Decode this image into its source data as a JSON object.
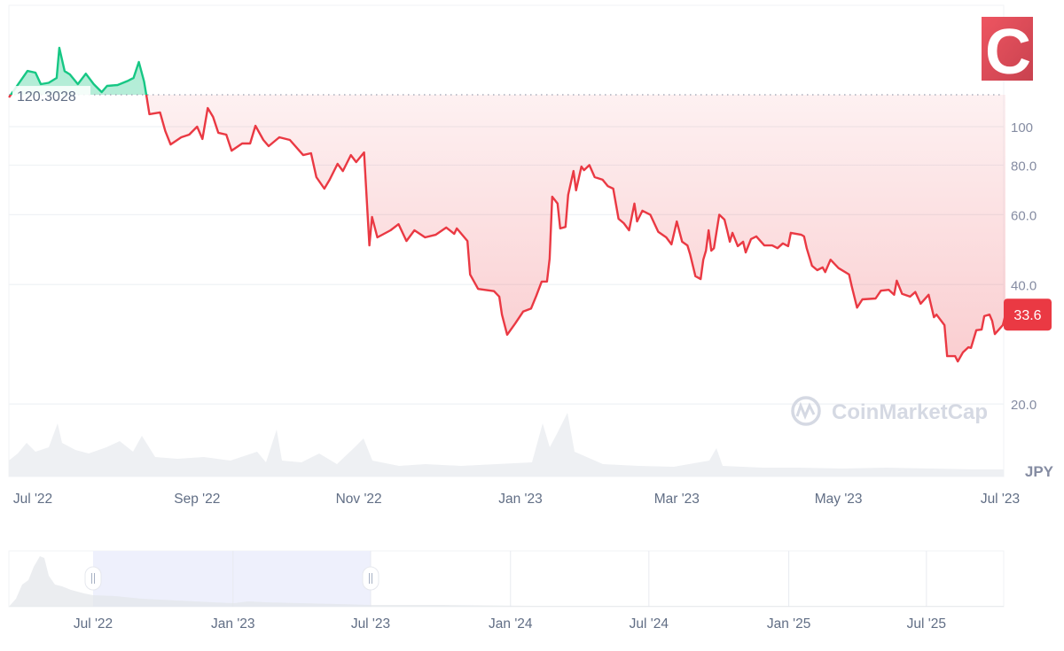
{
  "logo": {
    "letter": "C",
    "color": "#e8505b"
  },
  "watermark": {
    "text": "CoinMarketCap"
  },
  "currency_label": "JPY",
  "colors": {
    "up": "#16c784",
    "down": "#ea3943",
    "grid": "#eff2f5",
    "nav_selection": "#eef0fc"
  },
  "chart_data": {
    "type": "line",
    "y_scale": "log",
    "ylim": [
      17,
      175
    ],
    "xlim": [
      "2022-06-22",
      "2023-07-03"
    ],
    "grid": true,
    "baseline": {
      "value": 120.3028,
      "label": "120.3028"
    },
    "current_price": {
      "value": 33.6,
      "label": "33.6"
    },
    "y_ticks": [
      {
        "value": 100,
        "label": "100"
      },
      {
        "value": 80,
        "label": "80.0"
      },
      {
        "value": 60,
        "label": "60.0"
      },
      {
        "value": 40,
        "label": "40.0"
      },
      {
        "value": 20,
        "label": "20.0"
      }
    ],
    "x_ticks": [
      {
        "date": "2022-07-01",
        "label": "Jul '22"
      },
      {
        "date": "2022-09-01",
        "label": "Sep '22"
      },
      {
        "date": "2022-11-01",
        "label": "Nov '22"
      },
      {
        "date": "2023-01-01",
        "label": "Jan '23"
      },
      {
        "date": "2023-03-01",
        "label": "Mar '23"
      },
      {
        "date": "2023-05-01",
        "label": "May '23"
      },
      {
        "date": "2023-07-01",
        "label": "Jul '23"
      }
    ],
    "points": [
      [
        "2022-06-22",
        118.5
      ],
      [
        "2022-06-29",
        138.2
      ],
      [
        "2022-07-02",
        136.8
      ],
      [
        "2022-07-04",
        128
      ],
      [
        "2022-07-07",
        129
      ],
      [
        "2022-07-10",
        132.7
      ],
      [
        "2022-07-11",
        158
      ],
      [
        "2022-07-13",
        138
      ],
      [
        "2022-07-15",
        135.4
      ],
      [
        "2022-07-18",
        128
      ],
      [
        "2022-07-21",
        136
      ],
      [
        "2022-07-24",
        128
      ],
      [
        "2022-07-27",
        122.2
      ],
      [
        "2022-07-29",
        126.7
      ],
      [
        "2022-08-02",
        127.3
      ],
      [
        "2022-08-06",
        130.6
      ],
      [
        "2022-08-08",
        132.7
      ],
      [
        "2022-08-10",
        145.5
      ],
      [
        "2022-08-12",
        129.9
      ],
      [
        "2022-08-13",
        118.5
      ],
      [
        "2022-08-14",
        107.5
      ],
      [
        "2022-08-18",
        108.6
      ],
      [
        "2022-08-20",
        97.5
      ],
      [
        "2022-08-22",
        90.2
      ],
      [
        "2022-08-26",
        94
      ],
      [
        "2022-08-29",
        95.5
      ],
      [
        "2022-09-01",
        100
      ],
      [
        "2022-09-03",
        93.1
      ],
      [
        "2022-09-05",
        111.4
      ],
      [
        "2022-09-07",
        105.8
      ],
      [
        "2022-09-09",
        96.5
      ],
      [
        "2022-09-12",
        95.5
      ],
      [
        "2022-09-14",
        87.0
      ],
      [
        "2022-09-18",
        90.7
      ],
      [
        "2022-09-21",
        90.7
      ],
      [
        "2022-09-23",
        100.5
      ],
      [
        "2022-09-26",
        92.6
      ],
      [
        "2022-09-28",
        89.3
      ],
      [
        "2022-10-02",
        94
      ],
      [
        "2022-10-06",
        92.6
      ],
      [
        "2022-10-11",
        84.8
      ],
      [
        "2022-10-14",
        85.7
      ],
      [
        "2022-10-16",
        74.6
      ],
      [
        "2022-10-19",
        69.8
      ],
      [
        "2022-10-21",
        73.5
      ],
      [
        "2022-10-24",
        80.6
      ],
      [
        "2022-10-26",
        77.3
      ],
      [
        "2022-10-29",
        84.8
      ],
      [
        "2022-10-31",
        81.4
      ],
      [
        "2022-11-03",
        86.1
      ],
      [
        "2022-11-05",
        50.2
      ],
      [
        "2022-11-06",
        59.2
      ],
      [
        "2022-11-08",
        52.6
      ],
      [
        "2022-11-13",
        54.8
      ],
      [
        "2022-11-16",
        56.8
      ],
      [
        "2022-11-19",
        51.5
      ],
      [
        "2022-11-22",
        54.8
      ],
      [
        "2022-11-26",
        52.6
      ],
      [
        "2022-11-30",
        53.4
      ],
      [
        "2022-12-04",
        55.7
      ],
      [
        "2022-12-07",
        53.7
      ],
      [
        "2022-12-08",
        55.4
      ],
      [
        "2022-12-12",
        51.5
      ],
      [
        "2022-12-13",
        42.4
      ],
      [
        "2022-12-16",
        39.0
      ],
      [
        "2022-12-22",
        38.5
      ],
      [
        "2022-12-24",
        37.3
      ],
      [
        "2022-12-25",
        33.6
      ],
      [
        "2022-12-27",
        29.9
      ],
      [
        "2022-12-30",
        31.9
      ],
      [
        "2023-01-02",
        34.2
      ],
      [
        "2023-01-05",
        34.8
      ],
      [
        "2023-01-07",
        37.5
      ],
      [
        "2023-01-09",
        40.7
      ],
      [
        "2023-01-11",
        40.7
      ],
      [
        "2023-01-12",
        46.5
      ],
      [
        "2023-01-13",
        66.6
      ],
      [
        "2023-01-15",
        64.0
      ],
      [
        "2023-01-16",
        55.4
      ],
      [
        "2023-01-18",
        55.9
      ],
      [
        "2023-01-19",
        67.3
      ],
      [
        "2023-01-21",
        77.3
      ],
      [
        "2023-01-22",
        69.1
      ],
      [
        "2023-01-24",
        79.3
      ],
      [
        "2023-01-25",
        77.7
      ],
      [
        "2023-01-27",
        80
      ],
      [
        "2023-01-29",
        74.6
      ],
      [
        "2023-02-01",
        73.5
      ],
      [
        "2023-02-03",
        70.8
      ],
      [
        "2023-02-05",
        69.8
      ],
      [
        "2023-02-07",
        58.6
      ],
      [
        "2023-02-09",
        57.1
      ],
      [
        "2023-02-11",
        54.8
      ],
      [
        "2023-02-13",
        64.0
      ],
      [
        "2023-02-14",
        57.7
      ],
      [
        "2023-02-16",
        61.4
      ],
      [
        "2023-02-19",
        60
      ],
      [
        "2023-02-22",
        54.3
      ],
      [
        "2023-02-25",
        52.6
      ],
      [
        "2023-02-27",
        50.5
      ],
      [
        "2023-03-01",
        57.7
      ],
      [
        "2023-03-03",
        51.3
      ],
      [
        "2023-03-05",
        50.2
      ],
      [
        "2023-03-06",
        47.7
      ],
      [
        "2023-03-08",
        42.0
      ],
      [
        "2023-03-10",
        41.3
      ],
      [
        "2023-03-11",
        46.2
      ],
      [
        "2023-03-12",
        48.7
      ],
      [
        "2023-03-13",
        54.8
      ],
      [
        "2023-03-14",
        48.7
      ],
      [
        "2023-03-15",
        49.4
      ],
      [
        "2023-03-17",
        60
      ],
      [
        "2023-03-19",
        58.3
      ],
      [
        "2023-03-20",
        54.8
      ],
      [
        "2023-03-21",
        51.3
      ],
      [
        "2023-03-22",
        54.0
      ],
      [
        "2023-03-24",
        50.0
      ],
      [
        "2023-03-26",
        51.3
      ],
      [
        "2023-03-27",
        48.2
      ],
      [
        "2023-03-29",
        52.1
      ],
      [
        "2023-03-31",
        52.9
      ],
      [
        "2023-04-03",
        50.2
      ],
      [
        "2023-04-06",
        50.2
      ],
      [
        "2023-04-08",
        49.4
      ],
      [
        "2023-04-10",
        50.8
      ],
      [
        "2023-04-12",
        50.0
      ],
      [
        "2023-04-13",
        54.0
      ],
      [
        "2023-04-17",
        53.4
      ],
      [
        "2023-04-18",
        52.9
      ],
      [
        "2023-04-19",
        49.4
      ],
      [
        "2023-04-21",
        44.6
      ],
      [
        "2023-04-23",
        43.5
      ],
      [
        "2023-04-25",
        44.2
      ],
      [
        "2023-04-26",
        43.0
      ],
      [
        "2023-04-28",
        46.2
      ],
      [
        "2023-05-01",
        44.0
      ],
      [
        "2023-05-05",
        42.4
      ],
      [
        "2023-05-06",
        39.6
      ],
      [
        "2023-05-08",
        35.0
      ],
      [
        "2023-05-10",
        36.7
      ],
      [
        "2023-05-15",
        36.9
      ],
      [
        "2023-05-17",
        38.6
      ],
      [
        "2023-05-20",
        38.8
      ],
      [
        "2023-05-22",
        37.7
      ],
      [
        "2023-05-23",
        40.9
      ],
      [
        "2023-05-25",
        37.9
      ],
      [
        "2023-05-28",
        37.3
      ],
      [
        "2023-05-30",
        38.3
      ],
      [
        "2023-06-01",
        35.8
      ],
      [
        "2023-06-04",
        37.7
      ],
      [
        "2023-06-06",
        33.1
      ],
      [
        "2023-06-07",
        33.6
      ],
      [
        "2023-06-10",
        31.6
      ],
      [
        "2023-06-11",
        26.4
      ],
      [
        "2023-06-14",
        26.4
      ],
      [
        "2023-06-15",
        25.6
      ],
      [
        "2023-06-17",
        27.0
      ],
      [
        "2023-06-19",
        27.8
      ],
      [
        "2023-06-20",
        27.7
      ],
      [
        "2023-06-22",
        30.7
      ],
      [
        "2023-06-24",
        30.8
      ],
      [
        "2023-06-25",
        33.3
      ],
      [
        "2023-06-27",
        33.6
      ],
      [
        "2023-06-28",
        32.4
      ],
      [
        "2023-06-29",
        30.0
      ],
      [
        "2023-07-02",
        31.6
      ],
      [
        "2023-07-03",
        33.6
      ]
    ]
  },
  "navigator": {
    "selection": [
      "2022-07-01",
      "2023-07-01"
    ],
    "x_ticks": [
      {
        "date": "2022-07-01",
        "label": "Jul '22"
      },
      {
        "date": "2023-01-01",
        "label": "Jan '23"
      },
      {
        "date": "2023-07-01",
        "label": "Jul '23"
      },
      {
        "date": "2024-01-01",
        "label": "Jan '24"
      },
      {
        "date": "2024-07-01",
        "label": "Jul '24"
      },
      {
        "date": "2025-01-01",
        "label": "Jan '25"
      },
      {
        "date": "2025-07-01",
        "label": "Jul '25"
      }
    ]
  }
}
